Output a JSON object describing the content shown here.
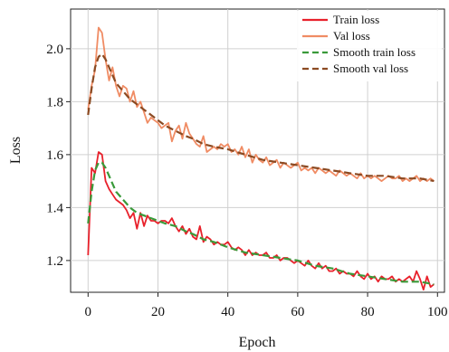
{
  "chart_data": {
    "type": "line",
    "title": "",
    "xlabel": "Epoch",
    "ylabel": "Loss",
    "xlim": [
      -5,
      102
    ],
    "ylim": [
      1.08,
      2.15
    ],
    "xticks": [
      0,
      20,
      40,
      60,
      80,
      100
    ],
    "yticks": [
      1.2,
      1.4,
      1.6,
      1.8,
      2.0
    ],
    "xtick_labels": [
      "0",
      "20",
      "40",
      "60",
      "80",
      "100"
    ],
    "ytick_labels": [
      "1.2",
      "1.4",
      "1.6",
      "1.8",
      "2.0"
    ],
    "grid": true,
    "legend_position": "top-right",
    "series": [
      {
        "name": "Train loss",
        "color": "#e8212b",
        "style": "solid",
        "x": [
          0,
          1,
          2,
          3,
          4,
          5,
          6,
          7,
          8,
          9,
          10,
          11,
          12,
          13,
          14,
          15,
          16,
          17,
          18,
          19,
          20,
          21,
          22,
          23,
          24,
          25,
          26,
          27,
          28,
          29,
          30,
          31,
          32,
          33,
          34,
          35,
          36,
          37,
          38,
          39,
          40,
          41,
          42,
          43,
          44,
          45,
          46,
          47,
          48,
          49,
          50,
          51,
          52,
          53,
          54,
          55,
          56,
          57,
          58,
          59,
          60,
          61,
          62,
          63,
          64,
          65,
          66,
          67,
          68,
          69,
          70,
          71,
          72,
          73,
          74,
          75,
          76,
          77,
          78,
          79,
          80,
          81,
          82,
          83,
          84,
          85,
          86,
          87,
          88,
          89,
          90,
          91,
          92,
          93,
          94,
          95,
          96,
          97,
          98,
          99
        ],
        "y": [
          1.22,
          1.55,
          1.53,
          1.61,
          1.6,
          1.5,
          1.47,
          1.45,
          1.43,
          1.42,
          1.41,
          1.39,
          1.36,
          1.38,
          1.32,
          1.38,
          1.33,
          1.37,
          1.35,
          1.35,
          1.34,
          1.35,
          1.35,
          1.34,
          1.36,
          1.33,
          1.31,
          1.33,
          1.3,
          1.32,
          1.29,
          1.28,
          1.33,
          1.27,
          1.29,
          1.28,
          1.26,
          1.27,
          1.26,
          1.26,
          1.27,
          1.25,
          1.24,
          1.25,
          1.24,
          1.22,
          1.24,
          1.22,
          1.23,
          1.22,
          1.22,
          1.23,
          1.21,
          1.21,
          1.22,
          1.2,
          1.21,
          1.21,
          1.2,
          1.19,
          1.2,
          1.19,
          1.18,
          1.2,
          1.18,
          1.17,
          1.19,
          1.17,
          1.18,
          1.16,
          1.16,
          1.17,
          1.15,
          1.16,
          1.15,
          1.15,
          1.14,
          1.16,
          1.14,
          1.13,
          1.15,
          1.13,
          1.14,
          1.12,
          1.14,
          1.13,
          1.13,
          1.14,
          1.12,
          1.13,
          1.12,
          1.13,
          1.14,
          1.12,
          1.16,
          1.13,
          1.09,
          1.14,
          1.1,
          1.11
        ]
      },
      {
        "name": "Val loss",
        "color": "#f08c64",
        "style": "solid",
        "x": [
          0,
          1,
          2,
          3,
          4,
          5,
          6,
          7,
          8,
          9,
          10,
          11,
          12,
          13,
          14,
          15,
          16,
          17,
          18,
          19,
          20,
          21,
          22,
          23,
          24,
          25,
          26,
          27,
          28,
          29,
          30,
          31,
          32,
          33,
          34,
          35,
          36,
          37,
          38,
          39,
          40,
          41,
          42,
          43,
          44,
          45,
          46,
          47,
          48,
          49,
          50,
          51,
          52,
          53,
          54,
          55,
          56,
          57,
          58,
          59,
          60,
          61,
          62,
          63,
          64,
          65,
          66,
          67,
          68,
          69,
          70,
          71,
          72,
          73,
          74,
          75,
          76,
          77,
          78,
          79,
          80,
          81,
          82,
          83,
          84,
          85,
          86,
          87,
          88,
          89,
          90,
          91,
          92,
          93,
          94,
          95,
          96,
          97,
          98,
          99
        ],
        "y": [
          1.77,
          1.86,
          1.92,
          2.08,
          2.06,
          1.96,
          1.88,
          1.93,
          1.86,
          1.82,
          1.86,
          1.85,
          1.8,
          1.84,
          1.78,
          1.8,
          1.76,
          1.72,
          1.74,
          1.73,
          1.72,
          1.7,
          1.71,
          1.72,
          1.65,
          1.69,
          1.71,
          1.66,
          1.72,
          1.68,
          1.66,
          1.64,
          1.63,
          1.67,
          1.61,
          1.62,
          1.63,
          1.62,
          1.64,
          1.63,
          1.64,
          1.61,
          1.62,
          1.6,
          1.63,
          1.59,
          1.62,
          1.57,
          1.6,
          1.58,
          1.57,
          1.59,
          1.56,
          1.57,
          1.58,
          1.55,
          1.57,
          1.56,
          1.55,
          1.56,
          1.57,
          1.54,
          1.55,
          1.54,
          1.55,
          1.53,
          1.55,
          1.54,
          1.53,
          1.54,
          1.53,
          1.52,
          1.54,
          1.53,
          1.52,
          1.53,
          1.52,
          1.51,
          1.53,
          1.51,
          1.52,
          1.51,
          1.52,
          1.51,
          1.5,
          1.51,
          1.52,
          1.51,
          1.51,
          1.52,
          1.5,
          1.51,
          1.5,
          1.51,
          1.52,
          1.5,
          1.51,
          1.5,
          1.51,
          1.5
        ]
      },
      {
        "name": "Smooth train loss",
        "color": "#3a9a3a",
        "style": "dashed",
        "x": [
          0,
          1,
          2,
          3,
          4,
          5,
          6,
          7,
          8,
          10,
          12,
          14,
          16,
          18,
          20,
          22,
          25,
          28,
          30,
          33,
          36,
          40,
          45,
          50,
          55,
          60,
          65,
          70,
          75,
          80,
          85,
          90,
          95,
          99
        ],
        "y": [
          1.34,
          1.46,
          1.54,
          1.57,
          1.57,
          1.55,
          1.52,
          1.49,
          1.46,
          1.43,
          1.4,
          1.38,
          1.37,
          1.36,
          1.35,
          1.34,
          1.33,
          1.31,
          1.3,
          1.28,
          1.27,
          1.25,
          1.23,
          1.22,
          1.21,
          1.2,
          1.18,
          1.17,
          1.15,
          1.14,
          1.13,
          1.12,
          1.12,
          1.11
        ]
      },
      {
        "name": "Smooth val loss",
        "color": "#8b4a22",
        "style": "dashed",
        "x": [
          0,
          1,
          2,
          3,
          4,
          5,
          6,
          7,
          8,
          10,
          12,
          14,
          16,
          18,
          20,
          22,
          25,
          28,
          30,
          33,
          36,
          40,
          45,
          50,
          55,
          60,
          65,
          70,
          75,
          80,
          85,
          90,
          95,
          99
        ],
        "y": [
          1.75,
          1.85,
          1.93,
          1.97,
          1.98,
          1.96,
          1.93,
          1.9,
          1.87,
          1.84,
          1.81,
          1.79,
          1.77,
          1.75,
          1.73,
          1.71,
          1.69,
          1.67,
          1.66,
          1.64,
          1.63,
          1.62,
          1.6,
          1.58,
          1.57,
          1.56,
          1.55,
          1.54,
          1.53,
          1.52,
          1.52,
          1.51,
          1.51,
          1.5
        ]
      }
    ]
  }
}
